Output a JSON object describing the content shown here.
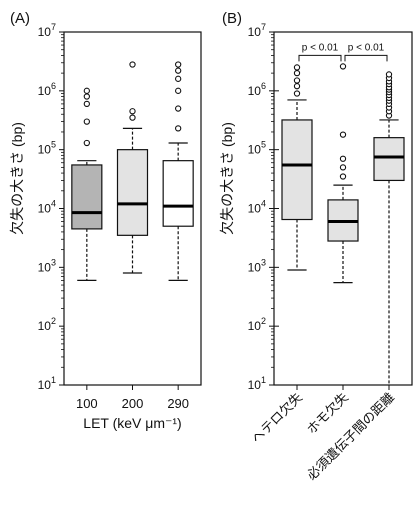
{
  "chart_data": [
    {
      "type": "box",
      "panel_label": "(A)",
      "ylabel": "欠失の大きさ (bp)",
      "xlabel": "LET (keV μm⁻¹)",
      "yscale": "log",
      "ylim": [
        10,
        10000000
      ],
      "yticks": [
        {
          "base": "10",
          "exp": "1"
        },
        {
          "base": "10",
          "exp": "2"
        },
        {
          "base": "10",
          "exp": "3"
        },
        {
          "base": "10",
          "exp": "4"
        },
        {
          "base": "10",
          "exp": "5"
        },
        {
          "base": "10",
          "exp": "6"
        },
        {
          "base": "10",
          "exp": "7"
        }
      ],
      "categories": [
        "100",
        "200",
        "290"
      ],
      "boxes": [
        {
          "min": 600,
          "q1": 4500,
          "median": 8500,
          "q3": 55000,
          "max": 65000,
          "fill": "#b4b4b4",
          "outliers": [
            130000,
            300000,
            600000,
            800000,
            1000000
          ]
        },
        {
          "min": 800,
          "q1": 3500,
          "median": 12000,
          "q3": 100000,
          "max": 230000,
          "fill": "#e3e3e3",
          "outliers": [
            350000,
            450000,
            2800000
          ]
        },
        {
          "min": 600,
          "q1": 5000,
          "median": 11000,
          "q3": 65000,
          "max": 130000,
          "fill": "#ffffff",
          "outliers": [
            230000,
            500000,
            1000000,
            1600000,
            2200000,
            2800000
          ]
        }
      ]
    },
    {
      "type": "box",
      "panel_label": "(B)",
      "ylabel": "欠失の大きさ (bp)",
      "xlabel": "",
      "yscale": "log",
      "ylim": [
        10,
        10000000
      ],
      "yticks": [
        {
          "base": "10",
          "exp": "1"
        },
        {
          "base": "10",
          "exp": "2"
        },
        {
          "base": "10",
          "exp": "3"
        },
        {
          "base": "10",
          "exp": "4"
        },
        {
          "base": "10",
          "exp": "5"
        },
        {
          "base": "10",
          "exp": "6"
        },
        {
          "base": "10",
          "exp": "7"
        }
      ],
      "categories": [
        "ヘテロ欠失",
        "ホモ欠失",
        "必須遺伝子間の距離"
      ],
      "boxes": [
        {
          "min": 900,
          "q1": 6500,
          "median": 55000,
          "q3": 320000,
          "max": 700000,
          "fill": "#e3e3e3",
          "outliers": [
            900000,
            1200000,
            1500000,
            2000000,
            2500000
          ]
        },
        {
          "min": 550,
          "q1": 2800,
          "median": 6000,
          "q3": 14000,
          "max": 25000,
          "fill": "#e3e3e3",
          "outliers": [
            35000,
            50000,
            70000,
            180000,
            2600000
          ]
        },
        {
          "min": 10,
          "q1": 30000,
          "median": 75000,
          "q3": 160000,
          "max": 320000,
          "fill": "#e3e3e3",
          "outliers": [
            380000,
            450000,
            520000,
            600000,
            680000,
            760000,
            850000,
            950000,
            1050000,
            1150000,
            1300000,
            1450000,
            1650000,
            1900000
          ]
        }
      ],
      "annotations": [
        {
          "text": "p < 0.01",
          "from": 0,
          "to": 1,
          "y": 4000000
        },
        {
          "text": "p < 0.01",
          "from": 1,
          "to": 2,
          "y": 4000000
        }
      ]
    }
  ]
}
